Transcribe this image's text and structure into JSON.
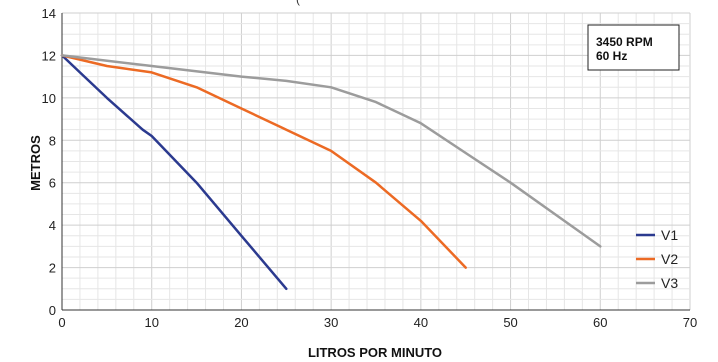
{
  "chart_data": {
    "type": "line",
    "subtitle_partial": "(",
    "xlabel": "LITROS POR MINUTO",
    "ylabel": "METROS",
    "xlim": [
      0,
      70
    ],
    "ylim": [
      0,
      14
    ],
    "x_ticks": [
      0,
      10,
      20,
      30,
      40,
      50,
      60,
      70
    ],
    "y_ticks": [
      0,
      2,
      4,
      6,
      8,
      10,
      12,
      14
    ],
    "grid": true,
    "annotation": [
      "3450 RPM",
      "60 Hz"
    ],
    "legend_position": "bottom-right",
    "series": [
      {
        "name": "V1",
        "color": "#2b3a8f",
        "x": [
          0,
          2,
          5,
          9,
          10,
          15,
          20,
          25
        ],
        "y": [
          12,
          11.2,
          10.0,
          8.5,
          8.2,
          6.0,
          3.5,
          1.0
        ]
      },
      {
        "name": "V2",
        "color": "#ec6a24",
        "x": [
          0,
          5,
          10,
          15,
          20,
          25,
          30,
          35,
          40,
          45
        ],
        "y": [
          12,
          11.5,
          11.2,
          10.5,
          9.5,
          8.5,
          7.5,
          6.0,
          4.2,
          2.0
        ]
      },
      {
        "name": "V3",
        "color": "#9c9c9c",
        "x": [
          0,
          10,
          20,
          25,
          30,
          35,
          40,
          45,
          50,
          55,
          60
        ],
        "y": [
          12,
          11.5,
          11.0,
          10.8,
          10.5,
          9.8,
          8.8,
          7.4,
          6.0,
          4.5,
          3.0
        ]
      }
    ]
  }
}
